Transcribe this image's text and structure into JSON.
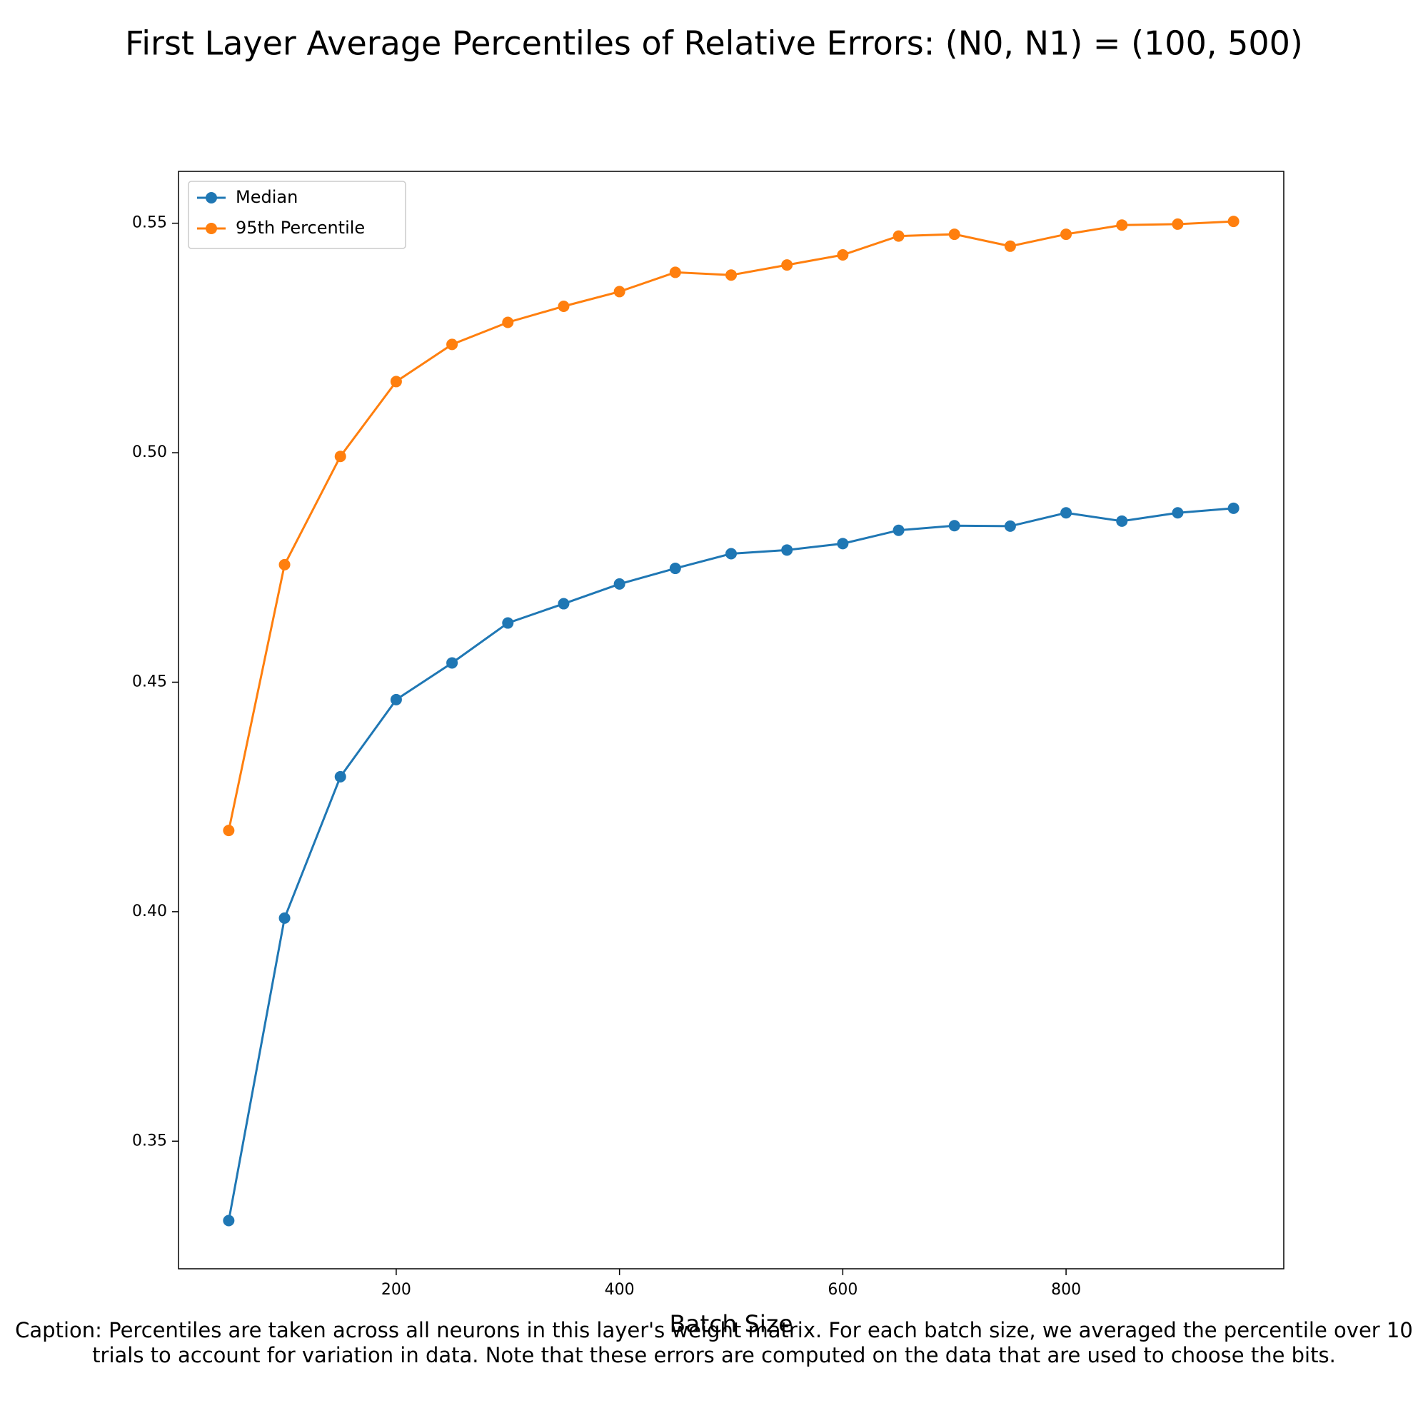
{
  "chart_data": {
    "type": "line",
    "title": "First Layer Average Percentiles of Relative Errors: (N0, N1) = (100, 500)",
    "x_label": "Batch Size",
    "caption": "Caption: Percentiles are taken across all neurons in this layer's weight matrix. For each batch size, we averaged the percentile over 10 trials to account for variation in data. Note that these errors are computed on the data that are used to choose the bits.",
    "x": [
      50,
      100,
      150,
      200,
      250,
      300,
      350,
      400,
      450,
      500,
      550,
      600,
      650,
      700,
      750,
      800,
      850,
      900,
      950
    ],
    "series": [
      {
        "name": "Median",
        "color": "#1f77b4",
        "values": [
          0.3327,
          0.3986,
          0.4294,
          0.4462,
          0.4542,
          0.4629,
          0.4671,
          0.4714,
          0.4748,
          0.478,
          0.4788,
          0.4802,
          0.4831,
          0.4841,
          0.484,
          0.4869,
          0.4851,
          0.4869,
          0.4879
        ]
      },
      {
        "name": "95th Percentile",
        "color": "#ff7f0e",
        "values": [
          0.4177,
          0.4756,
          0.4992,
          0.5155,
          0.5236,
          0.5284,
          0.5319,
          0.5351,
          0.5393,
          0.5387,
          0.5409,
          0.5431,
          0.5472,
          0.5476,
          0.545,
          0.5476,
          0.5496,
          0.5498,
          0.5504
        ]
      }
    ],
    "xlim": [
      5,
      995
    ],
    "xticks": [
      200,
      400,
      600,
      800
    ],
    "ylim": [
      0.3222,
      0.5613
    ],
    "yticks": [
      0.35,
      {
        "value": 0.4,
        "label": "0.40"
      },
      0.45,
      {
        "value": 0.5,
        "label": "0.50"
      },
      0.55
    ],
    "grid": false,
    "legend": "upper left"
  }
}
